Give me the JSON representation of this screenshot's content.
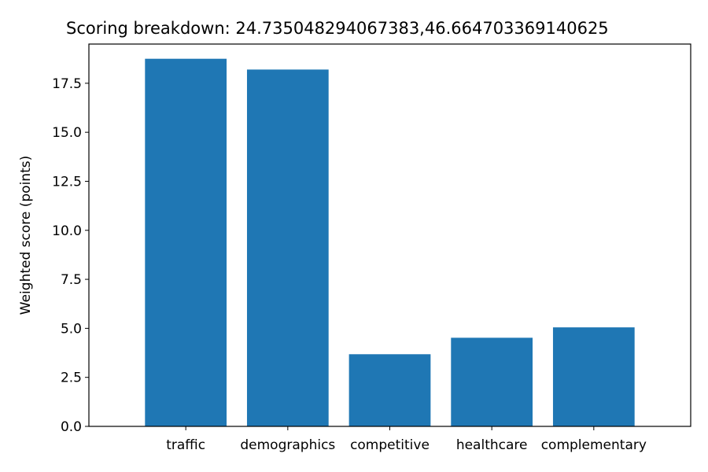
{
  "chart_data": {
    "type": "bar",
    "title": "Scoring breakdown: 24.735048294067383,46.664703369140625",
    "xlabel": "",
    "ylabel": "Weighted score (points)",
    "categories": [
      "traffic",
      "demographics",
      "competitive",
      "healthcare",
      "complementary"
    ],
    "values": [
      18.75,
      18.2,
      3.68,
      4.52,
      5.05
    ],
    "ylim": [
      0,
      19.5
    ],
    "yticks": [
      0.0,
      2.5,
      5.0,
      7.5,
      10.0,
      12.5,
      15.0,
      17.5
    ],
    "ytick_labels": [
      "0.0",
      "2.5",
      "5.0",
      "7.5",
      "10.0",
      "12.5",
      "15.0",
      "17.5"
    ],
    "bar_color": "#1f77b4",
    "grid": false,
    "legend": "none"
  }
}
